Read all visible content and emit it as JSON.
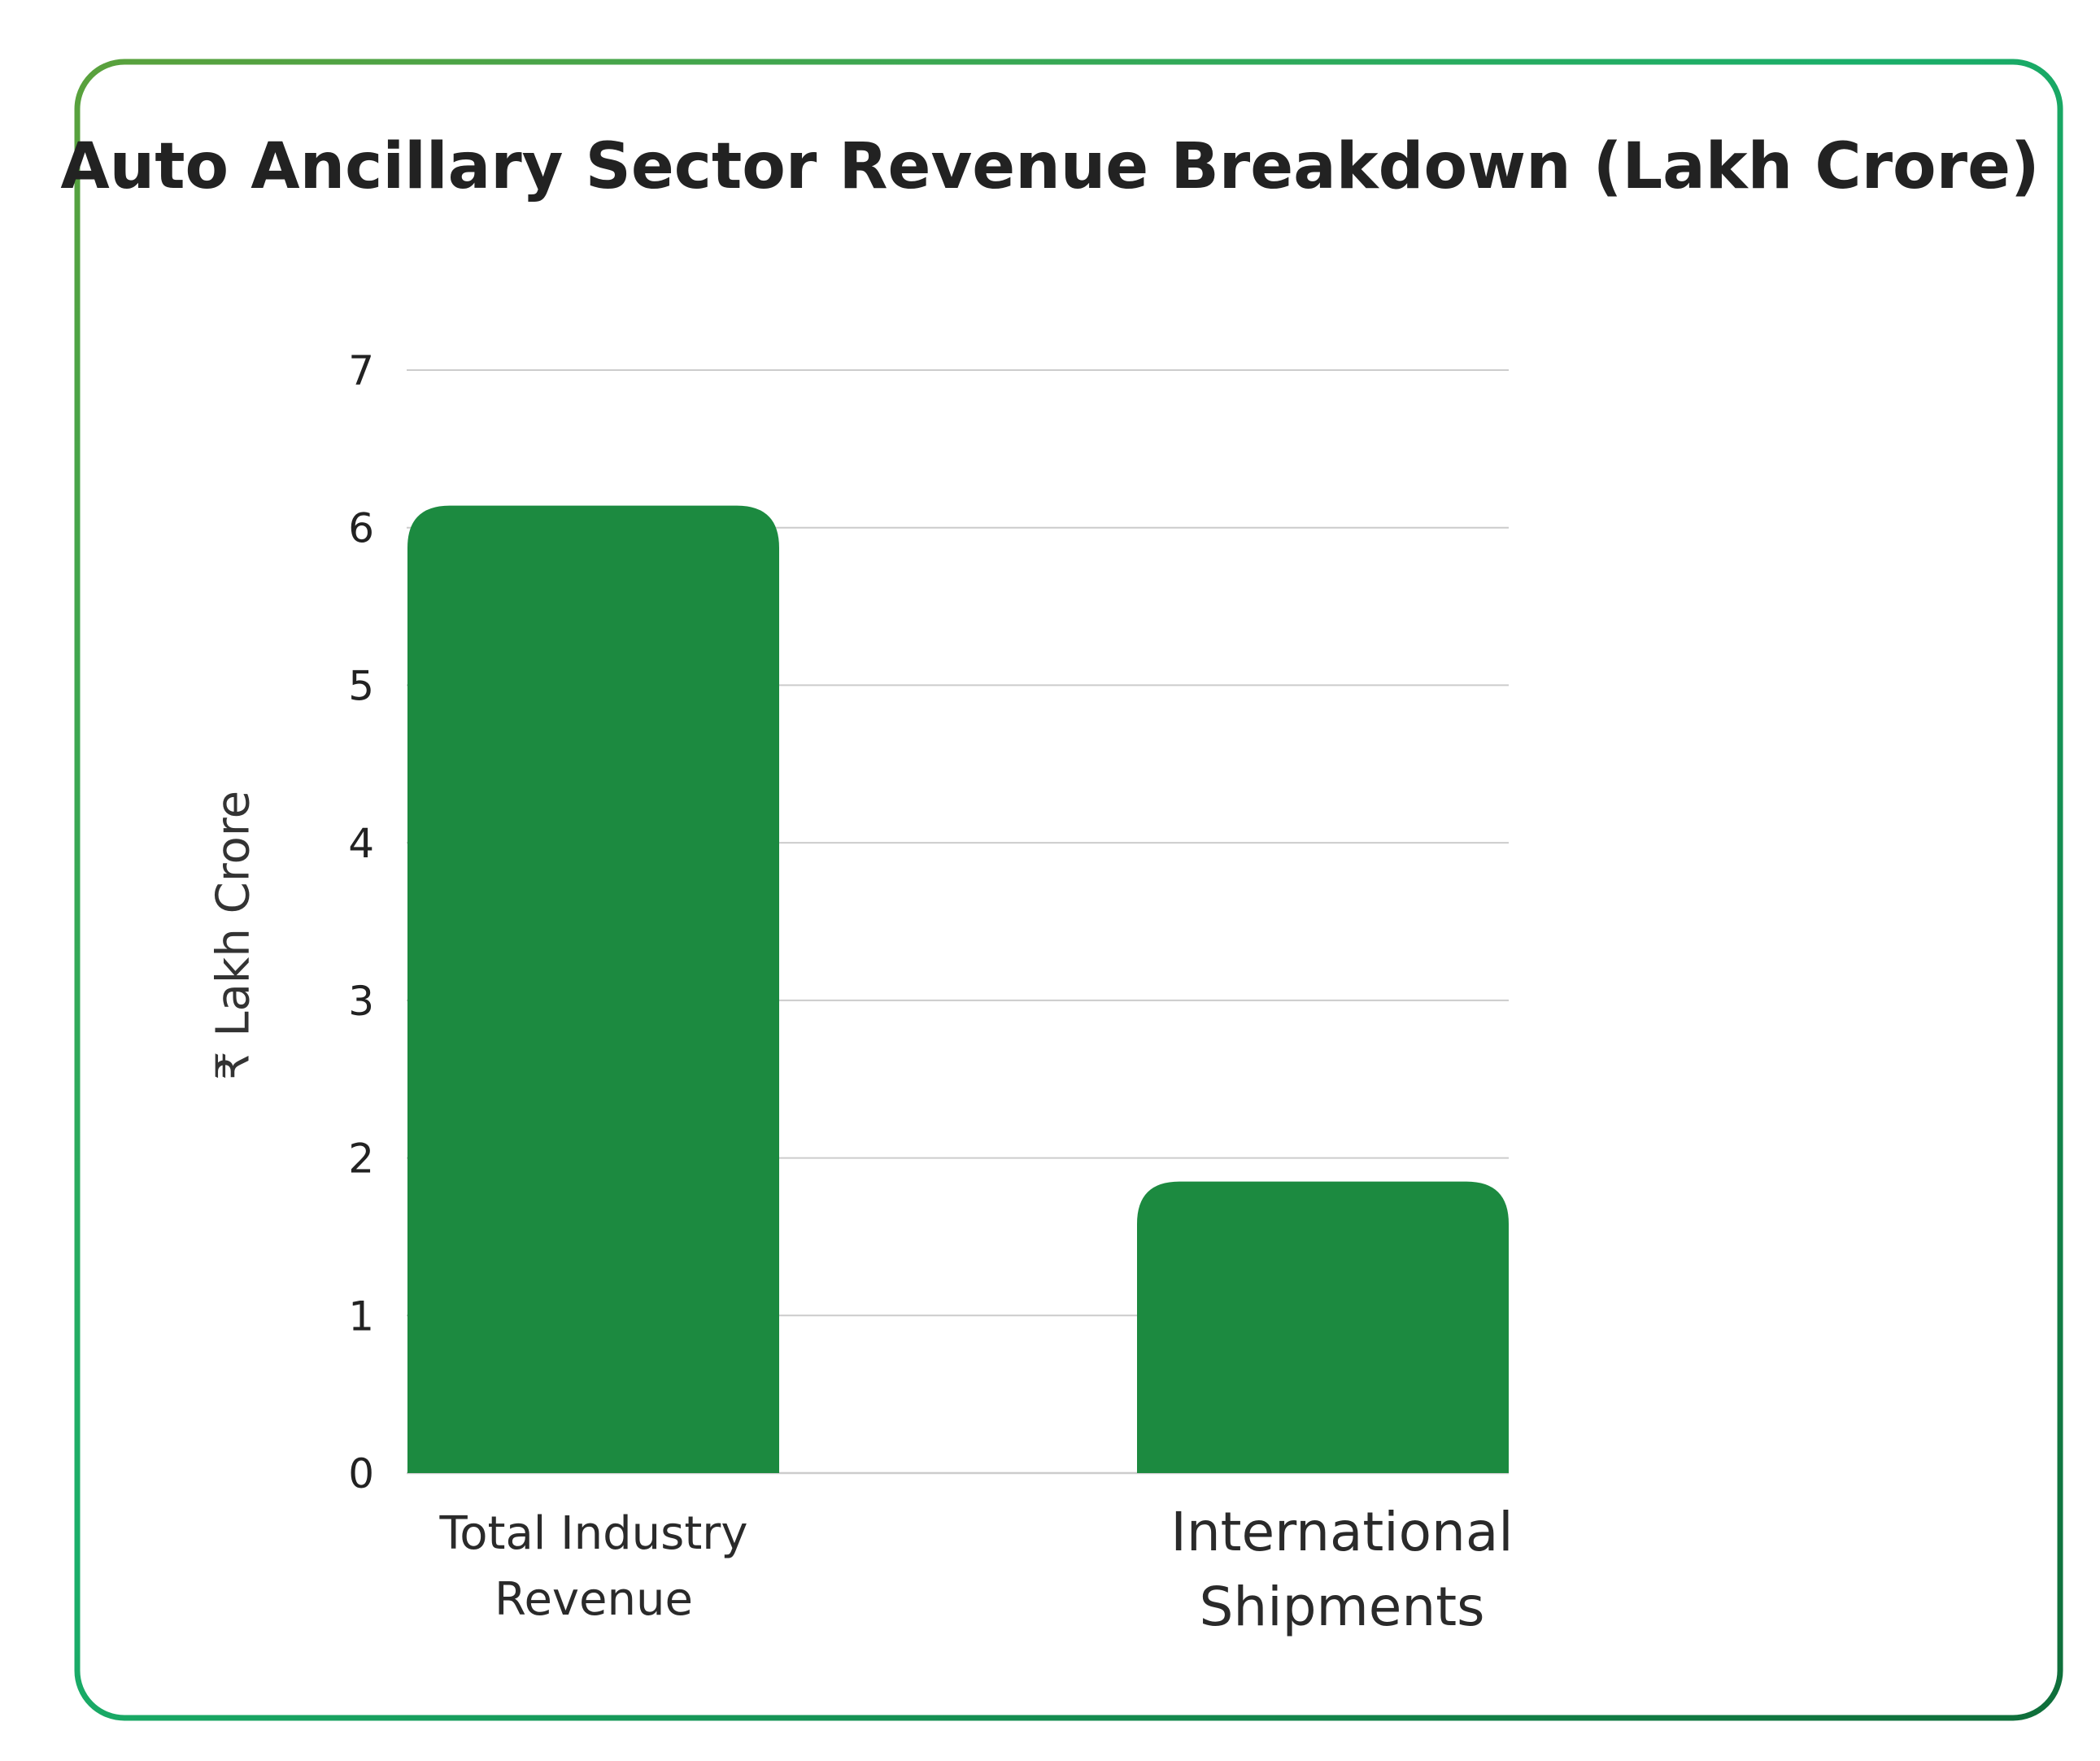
{
  "chart_data": {
    "type": "bar",
    "title": "Auto Ancillary Sector Revenue Breakdown (Lakh Crore)",
    "xlabel": "",
    "ylabel": "₹ Lakh Crore",
    "categories": [
      "Total Industry Revenue",
      "International Shipments"
    ],
    "values": [
      6.14,
      1.85
    ],
    "ylim": [
      0,
      7
    ],
    "yticks": [
      "0",
      "1",
      "2",
      "3",
      "4",
      "5",
      "6",
      "7"
    ],
    "grid": true,
    "legend": "none"
  },
  "colors": {
    "bar": "#1c8a40",
    "grid": "#cccccc",
    "border_start": "#5aa13c",
    "border_mid": "#1aaf6a",
    "border_end": "#0f6e3a"
  }
}
